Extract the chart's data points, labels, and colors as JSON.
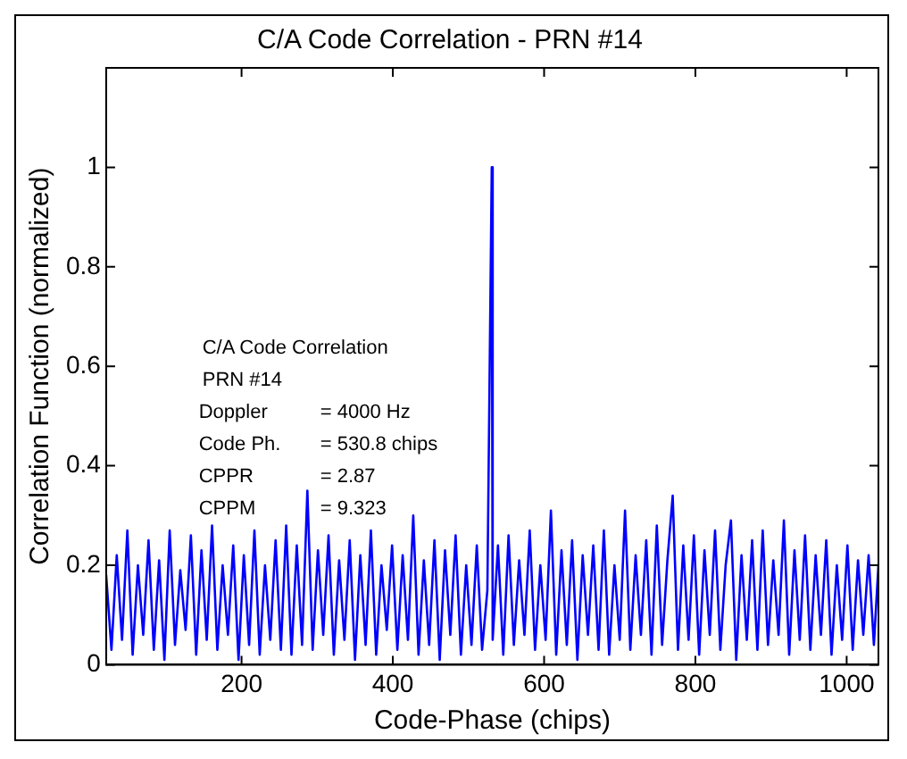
{
  "chart_data": {
    "type": "line",
    "title": "C/A Code Correlation - PRN #14",
    "xlabel": "Code-Phase (chips)",
    "ylabel": "Correlation Function (normalized)",
    "annotations": [
      "C/A Code Correlation",
      "PRN #14",
      "Doppler     = 4000 Hz",
      "Code Ph.   = 530.8 chips",
      "CPPR        = 2.87",
      "CPPM        = 9.323"
    ],
    "xlim": [
      21,
      1042
    ],
    "xticks": [
      200,
      400,
      600,
      800,
      1000
    ],
    "ylim": [
      0,
      1.2
    ],
    "yticks": [
      0,
      0.2,
      0.4,
      0.6,
      0.8,
      1
    ],
    "grid": false,
    "legend": false,
    "series": [
      {
        "color": "#0000ff",
        "x": [
          21,
          28,
          35,
          42,
          49,
          56,
          63,
          70,
          77,
          84,
          91,
          98,
          105,
          112,
          119,
          126,
          133,
          140,
          147,
          154,
          161,
          168,
          175,
          182,
          189,
          196,
          203,
          210,
          217,
          224,
          231,
          238,
          245,
          252,
          259,
          266,
          273,
          280,
          287,
          294,
          301,
          308,
          315,
          322,
          329,
          336,
          343,
          350,
          357,
          364,
          371,
          378,
          385,
          392,
          399,
          406,
          413,
          420,
          427,
          434,
          441,
          448,
          455,
          462,
          469,
          476,
          483,
          490,
          497,
          504,
          511,
          518,
          525,
          530.8,
          532,
          539,
          546,
          553,
          560,
          567,
          574,
          581,
          588,
          595,
          602,
          609,
          616,
          623,
          630,
          637,
          644,
          651,
          658,
          665,
          672,
          679,
          686,
          693,
          700,
          707,
          714,
          721,
          728,
          735,
          742,
          749,
          756,
          763,
          770,
          777,
          784,
          791,
          798,
          805,
          812,
          819,
          826,
          833,
          840,
          847,
          854,
          861,
          868,
          875,
          882,
          889,
          896,
          903,
          910,
          917,
          924,
          931,
          938,
          945,
          952,
          959,
          966,
          973,
          980,
          987,
          994,
          1001,
          1008,
          1015,
          1022,
          1029,
          1036,
          1042
        ],
        "values": [
          0.18,
          0.03,
          0.22,
          0.05,
          0.27,
          0.02,
          0.2,
          0.06,
          0.25,
          0.03,
          0.21,
          0.01,
          0.27,
          0.04,
          0.19,
          0.07,
          0.26,
          0.02,
          0.23,
          0.05,
          0.28,
          0.03,
          0.2,
          0.06,
          0.24,
          0.01,
          0.22,
          0.04,
          0.27,
          0.02,
          0.2,
          0.05,
          0.25,
          0.03,
          0.28,
          0.02,
          0.24,
          0.04,
          0.35,
          0.03,
          0.23,
          0.06,
          0.26,
          0.02,
          0.21,
          0.05,
          0.25,
          0.01,
          0.22,
          0.04,
          0.27,
          0.02,
          0.2,
          0.07,
          0.24,
          0.03,
          0.22,
          0.05,
          0.3,
          0.02,
          0.21,
          0.04,
          0.25,
          0.01,
          0.23,
          0.06,
          0.26,
          0.02,
          0.2,
          0.04,
          0.24,
          0.03,
          0.15,
          1,
          0.05,
          0.24,
          0.02,
          0.26,
          0.04,
          0.21,
          0.06,
          0.27,
          0.03,
          0.2,
          0.05,
          0.31,
          0.02,
          0.23,
          0.04,
          0.25,
          0.01,
          0.22,
          0.06,
          0.24,
          0.03,
          0.27,
          0.02,
          0.2,
          0.05,
          0.31,
          0.03,
          0.22,
          0.06,
          0.25,
          0.02,
          0.28,
          0.04,
          0.21,
          0.34,
          0.03,
          0.24,
          0.05,
          0.26,
          0.02,
          0.23,
          0.06,
          0.27,
          0.03,
          0.2,
          0.29,
          0.01,
          0.22,
          0.05,
          0.25,
          0.03,
          0.27,
          0.04,
          0.21,
          0.06,
          0.29,
          0.02,
          0.23,
          0.05,
          0.26,
          0.03,
          0.22,
          0.06,
          0.25,
          0.02,
          0.2,
          0.05,
          0.24,
          0.03,
          0.21,
          0.06,
          0.22,
          0.04,
          0.2
        ]
      }
    ]
  }
}
